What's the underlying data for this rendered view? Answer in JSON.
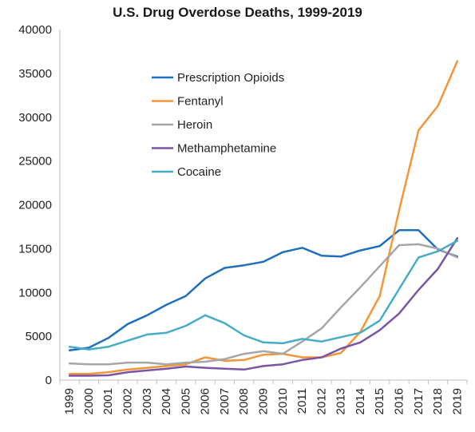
{
  "chart_data": {
    "type": "line",
    "title": "U.S. Drug Overdose Deaths, 1999-2019",
    "xlabel": "",
    "ylabel": "",
    "ylim": [
      0,
      40000
    ],
    "y_ticks": [
      0,
      5000,
      10000,
      15000,
      20000,
      25000,
      30000,
      35000,
      40000
    ],
    "grid": false,
    "legend_position": "top-left",
    "categories": [
      "1999",
      "2000",
      "2001",
      "2002",
      "2003",
      "2004",
      "2005",
      "2006",
      "2007",
      "2008",
      "2009",
      "2010",
      "2011",
      "2012",
      "2013",
      "2014",
      "2015",
      "2016",
      "2017",
      "2018",
      "2019"
    ],
    "series": [
      {
        "name": "Prescription Opioids",
        "color": "#1f6fbf",
        "values": [
          3400,
          3700,
          4800,
          6400,
          7400,
          8600,
          9600,
          11600,
          12800,
          13100,
          13500,
          14600,
          15100,
          14200,
          14100,
          14800,
          15300,
          17100,
          17100,
          14900,
          14100
        ]
      },
      {
        "name": "Fentanyl",
        "color": "#f3963a",
        "values": [
          700,
          700,
          900,
          1200,
          1400,
          1600,
          1800,
          2600,
          2200,
          2300,
          2900,
          3000,
          2600,
          2600,
          3100,
          5500,
          9600,
          19400,
          28500,
          31300,
          36400
        ]
      },
      {
        "name": "Heroin",
        "color": "#a6a6a6",
        "values": [
          1900,
          1800,
          1800,
          2000,
          2000,
          1800,
          2000,
          2100,
          2400,
          3000,
          3300,
          3000,
          4400,
          5900,
          8300,
          10600,
          13000,
          15400,
          15500,
          15000,
          14000
        ]
      },
      {
        "name": "Methamphetamine",
        "color": "#7a55a5",
        "values": [
          500,
          500,
          550,
          900,
          1100,
          1300,
          1550,
          1400,
          1300,
          1200,
          1600,
          1800,
          2300,
          2600,
          3600,
          4300,
          5700,
          7600,
          10300,
          12700,
          16200
        ]
      },
      {
        "name": "Cocaine",
        "color": "#47adc6",
        "values": [
          3800,
          3500,
          3800,
          4500,
          5200,
          5400,
          6200,
          7400,
          6500,
          5100,
          4300,
          4200,
          4700,
          4400,
          4900,
          5400,
          6800,
          10400,
          14000,
          14700,
          15900
        ]
      }
    ]
  }
}
